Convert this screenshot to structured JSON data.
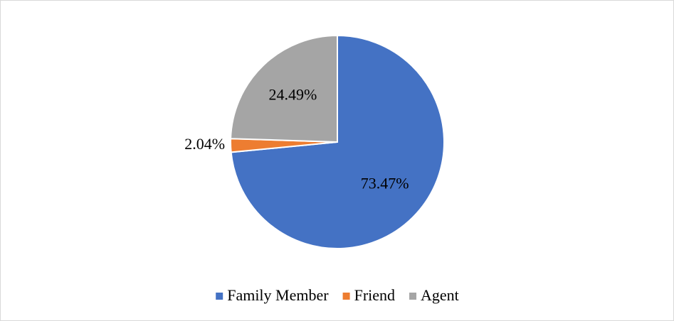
{
  "chart_data": {
    "type": "pie",
    "categories": [
      "Family Member",
      "Friend",
      "Agent"
    ],
    "values": [
      73.47,
      2.04,
      24.49
    ],
    "value_labels": [
      "73.47%",
      "2.04%",
      "24.49%"
    ],
    "colors": [
      "#4472c4",
      "#ed7d31",
      "#a5a5a5"
    ],
    "legend": "bottom"
  }
}
